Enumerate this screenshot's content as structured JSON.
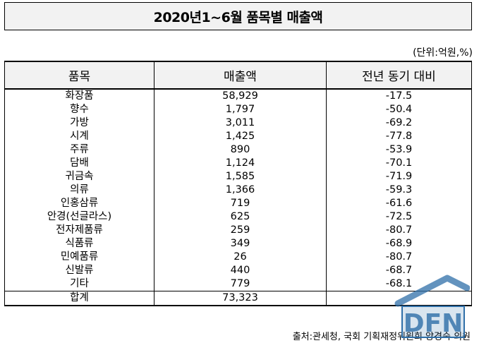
{
  "title": "2020년1~6월 품목별 매출액",
  "unit": "(단위:억원,%)",
  "table": {
    "headers": [
      "품목",
      "매출액",
      "전년 동기 대비"
    ],
    "rows": [
      [
        "화장품",
        "58,929",
        "-17.5"
      ],
      [
        "향수",
        "1,797",
        "-50.4"
      ],
      [
        "가방",
        "3,011",
        "-69.2"
      ],
      [
        "시계",
        "1,425",
        "-77.8"
      ],
      [
        "주류",
        "890",
        "-53.9"
      ],
      [
        "담배",
        "1,124",
        "-70.1"
      ],
      [
        "귀금속",
        "1,585",
        "-71.9"
      ],
      [
        "의류",
        "1,366",
        "-59.3"
      ],
      [
        "인홍삼류",
        "719",
        "-61.6"
      ],
      [
        "안경(선글라스)",
        "625",
        "-72.5"
      ],
      [
        "전자제품류",
        "259",
        "-80.7"
      ],
      [
        "식품류",
        "349",
        "-68.9"
      ],
      [
        "민예품류",
        "26",
        "-80.7"
      ],
      [
        "신발류",
        "440",
        "-68.7"
      ],
      [
        "기타",
        "779",
        "-68.1"
      ],
      [
        "합계",
        "73,323",
        ""
      ]
    ]
  },
  "source": "출처:관세청, 국회 기획재정위원회 양경숙 의원",
  "watermark": {
    "logo_text": "DFN",
    "icon": "dfn-house-logo",
    "color": "#2f6fa8"
  }
}
